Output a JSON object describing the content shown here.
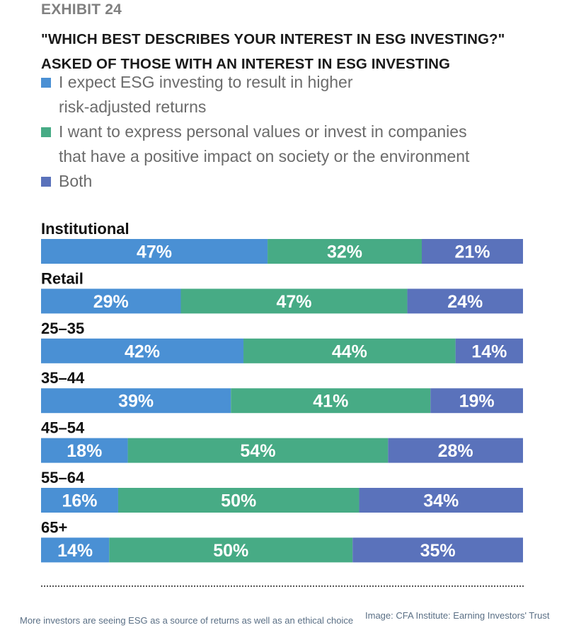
{
  "exhibit": "EXHIBIT 24",
  "title_line1": "\"WHICH BEST DESCRIBES YOUR INTEREST IN ESG INVESTING?\"",
  "title_line2": "ASKED OF THOSE WITH AN INTEREST IN ESG INVESTING",
  "colors": {
    "returns": "#4a90d4",
    "values": "#47ab85",
    "both": "#5a72bb",
    "label_text": "#ffffff",
    "category_text": "#111111"
  },
  "chart_data": {
    "type": "bar",
    "orientation": "horizontal",
    "stacked": true,
    "normalized_to": 100,
    "unit": "%",
    "title": "\"WHICH BEST DESCRIBES YOUR INTEREST IN ESG INVESTING?\" ASKED OF THOSE WITH AN INTEREST IN ESG INVESTING",
    "legend_position": "top",
    "categories": [
      "Institutional",
      "Retail",
      "25–35",
      "35–44",
      "45–54",
      "55–64",
      "65+"
    ],
    "series": [
      {
        "name": "I expect ESG investing to result in higher\nrisk-adjusted returns",
        "color": "#4a90d4",
        "values": [
          47,
          29,
          42,
          39,
          18,
          16,
          14
        ]
      },
      {
        "name": "I want to express personal values or invest in companies\nthat have a positive impact on society or the environment",
        "color": "#47ab85",
        "values": [
          32,
          47,
          44,
          41,
          54,
          50,
          50
        ]
      },
      {
        "name": "Both",
        "color": "#5a72bb",
        "values": [
          21,
          24,
          14,
          19,
          28,
          34,
          35
        ]
      }
    ]
  },
  "caption": "More investors are seeing ESG as a source of returns as well as an ethical choice",
  "credit": "Image: CFA Institute: Earning Investors' Trust"
}
